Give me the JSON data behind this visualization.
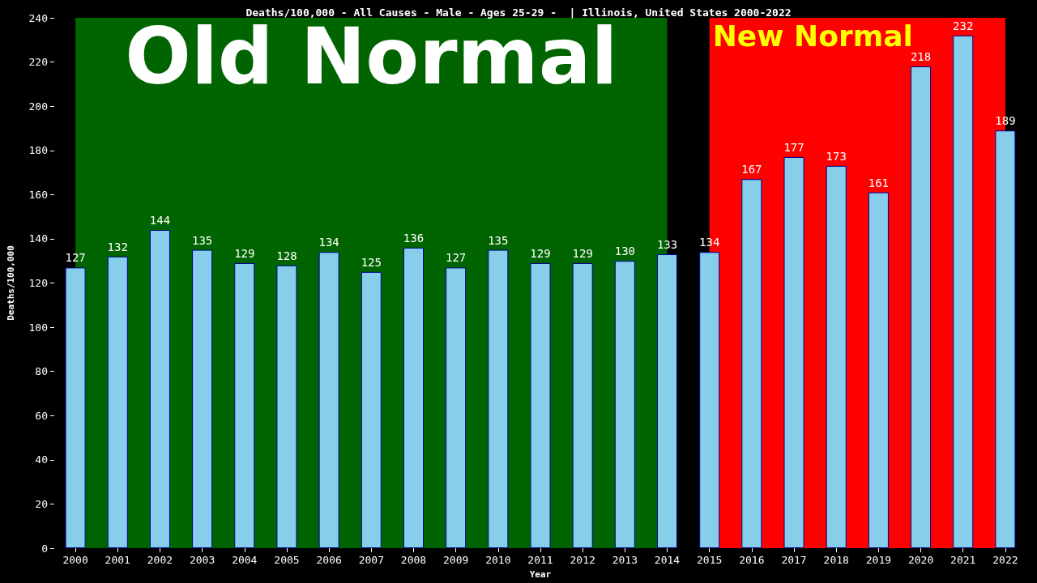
{
  "chart_data": {
    "type": "bar",
    "title": "Deaths/100,000 - All Causes - Male - Ages 25-29 -  | Illinois, United States 2000-2022",
    "xlabel": "Year",
    "ylabel": "Deaths/100,000",
    "categories": [
      "2000",
      "2001",
      "2002",
      "2003",
      "2004",
      "2005",
      "2006",
      "2007",
      "2008",
      "2009",
      "2010",
      "2011",
      "2012",
      "2013",
      "2014",
      "2015",
      "2016",
      "2017",
      "2018",
      "2019",
      "2020",
      "2021",
      "2022"
    ],
    "values": [
      127,
      132,
      144,
      135,
      129,
      128,
      134,
      125,
      136,
      127,
      135,
      129,
      129,
      130,
      133,
      134,
      167,
      177,
      173,
      161,
      218,
      232,
      189
    ],
    "color": "#87ceeb",
    "ylim": [
      0,
      240
    ],
    "yticks": [
      0,
      20,
      40,
      60,
      80,
      100,
      120,
      140,
      160,
      180,
      200,
      220,
      240
    ],
    "grid": false,
    "data_labels": true,
    "bands": [
      {
        "axis": "x",
        "from": "2000",
        "to": "2014",
        "label": "Old Normal",
        "color": "#006400"
      },
      {
        "axis": "x",
        "from": "2015",
        "to": "2022",
        "label": "New Normal",
        "color": "#ff0000"
      }
    ]
  }
}
